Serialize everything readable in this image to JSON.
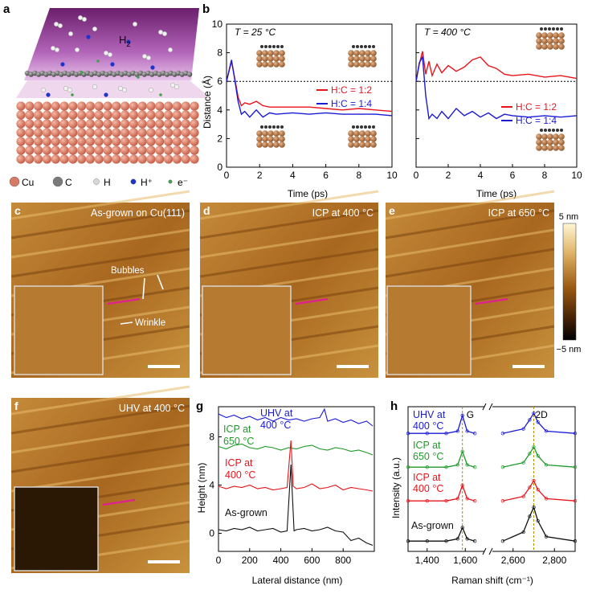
{
  "panel_labels": {
    "a": "a",
    "b": "b",
    "c": "c",
    "d": "d",
    "e": "e",
    "f": "f",
    "g": "g",
    "h": "h"
  },
  "panel_a": {
    "h2_label": "H",
    "h2_sub": "2",
    "legend": [
      {
        "symbol": "cu-atom",
        "label": "Cu",
        "color": "#d77a64"
      },
      {
        "symbol": "c-atom",
        "label": "C",
        "color": "#7a7a7a"
      },
      {
        "symbol": "h-atom",
        "label": "H",
        "color": "#d9d9d9"
      },
      {
        "symbol": "h-plus",
        "label": "H⁺",
        "color": "#1f35c9"
      },
      {
        "symbol": "electron",
        "label": "e⁻",
        "color": "#3fa34d"
      }
    ]
  },
  "panel_b": {
    "temps": [
      "T = 25 °C",
      "T = 400 °C"
    ],
    "legend": [
      "H:C = 1:2",
      "H:C = 1:4"
    ],
    "ylabel": "Distance (Å)",
    "xlabel": "Time (ps)",
    "colors": {
      "hc12": "#e8141b",
      "hc14": "#1a1ad6"
    }
  },
  "afm": {
    "c_title": "As-grown on Cu(111)",
    "d_title": "ICP at 400 °C",
    "e_title": "ICP at 650 °C",
    "f_title": "UHV at 400 °C",
    "bubbles": "Bubbles",
    "wrinkle": "Wrinkle",
    "scale_max": "5 nm",
    "scale_min": "−5 nm"
  },
  "panel_g": {
    "ylabel": "Height (nm)",
    "xlabel": "Lateral distance (nm)",
    "curves": [
      {
        "label_l1": "UHV at",
        "label_l2": "400 °C",
        "color": "#1a1ad6"
      },
      {
        "label_l1": "ICP at",
        "label_l2": "650 °C",
        "color": "#1f9a2a"
      },
      {
        "label_l1": "ICP at",
        "label_l2": "400 °C",
        "color": "#e8141b"
      },
      {
        "label_l1": "As-grown",
        "label_l2": "",
        "color": "#111111"
      }
    ]
  },
  "panel_h": {
    "ylabel": "Intensity (a.u.)",
    "xlabel": "Raman shift (cm⁻¹)",
    "peaks": [
      "G",
      "2D"
    ],
    "curves": [
      {
        "label_l1": "UHV at",
        "label_l2": "400 °C",
        "color": "#1a1ad6"
      },
      {
        "label_l1": "ICP at",
        "label_l2": "650 °C",
        "color": "#1f9a2a"
      },
      {
        "label_l1": "ICP at",
        "label_l2": "400 °C",
        "color": "#e8141b"
      },
      {
        "label_l1": "As-grown",
        "label_l2": "",
        "color": "#111111"
      }
    ]
  },
  "chart_data": [
    {
      "type": "line",
      "title": "T = 25 °C",
      "xlabel": "Time (ps)",
      "ylabel": "Distance (Å)",
      "xlim": [
        0,
        10
      ],
      "ylim": [
        0,
        10
      ],
      "x_ticks": [
        "0",
        "2",
        "4",
        "6",
        "8",
        "10"
      ],
      "y_ticks": [
        "0",
        "2",
        "4",
        "6",
        "8",
        "10"
      ],
      "reference_line_y": 6,
      "series": [
        {
          "name": "H:C = 1:2",
          "x": [
            0,
            0.3,
            0.5,
            0.7,
            0.9,
            1.1,
            1.4,
            1.8,
            2.2,
            2.6,
            3,
            4,
            5,
            6,
            7,
            8,
            9,
            10
          ],
          "y": [
            6,
            7.4,
            6.2,
            4.9,
            4.3,
            4.5,
            4.4,
            4.6,
            4.3,
            4.2,
            4.2,
            4.2,
            4.2,
            4.1,
            4.0,
            4.1,
            4.0,
            3.9
          ]
        },
        {
          "name": "H:C = 1:4",
          "x": [
            0,
            0.3,
            0.5,
            0.7,
            0.9,
            1.1,
            1.4,
            1.8,
            2.2,
            2.6,
            3,
            4,
            5,
            6,
            7,
            8,
            9,
            10
          ],
          "y": [
            6,
            7.5,
            6.1,
            4.6,
            3.7,
            3.9,
            3.5,
            4.0,
            3.5,
            3.8,
            3.7,
            3.8,
            3.7,
            3.8,
            3.7,
            3.7,
            3.7,
            3.6
          ]
        }
      ]
    },
    {
      "type": "line",
      "title": "T = 400 °C",
      "xlabel": "Time (ps)",
      "ylabel": "",
      "xlim": [
        0,
        10
      ],
      "ylim": [
        0,
        10
      ],
      "x_ticks": [
        "0",
        "2",
        "4",
        "6",
        "8",
        "10"
      ],
      "reference_line_y": 6,
      "series": [
        {
          "name": "H:C = 1:2",
          "x": [
            0,
            0.2,
            0.4,
            0.6,
            0.8,
            1,
            1.3,
            1.6,
            2,
            2.5,
            3,
            3.5,
            4,
            4.5,
            5,
            5.5,
            6,
            7,
            8,
            9,
            10
          ],
          "y": [
            6,
            7.2,
            8.1,
            6.5,
            7.4,
            6.4,
            7.2,
            6.6,
            7.1,
            6.7,
            7.0,
            7.5,
            7.7,
            7.1,
            6.9,
            6.5,
            6.4,
            6.5,
            6.3,
            6.4,
            6.2
          ]
        },
        {
          "name": "H:C = 1:4",
          "x": [
            0,
            0.2,
            0.4,
            0.6,
            0.8,
            1,
            1.3,
            1.6,
            2,
            2.5,
            3,
            3.5,
            4,
            4.5,
            5,
            5.5,
            6,
            7,
            8,
            9,
            10
          ],
          "y": [
            6,
            7.3,
            7.7,
            5.0,
            3.4,
            3.7,
            3.4,
            3.9,
            3.4,
            4.1,
            3.6,
            3.9,
            3.5,
            3.8,
            3.4,
            3.7,
            3.6,
            3.5,
            3.6,
            3.5,
            3.6
          ]
        }
      ]
    },
    {
      "type": "line",
      "title": "",
      "xlabel": "Lateral distance (nm)",
      "ylabel": "Height (nm)",
      "xlim": [
        0,
        1000
      ],
      "ylim": [
        -1.5,
        10.5
      ],
      "x_ticks": [
        "0",
        "200",
        "400",
        "600",
        "800"
      ],
      "y_ticks": [
        "0",
        "4",
        "8"
      ],
      "series": [
        {
          "name": "UHV at 400 °C",
          "x": [
            0,
            50,
            100,
            150,
            200,
            250,
            300,
            350,
            400,
            450,
            500,
            550,
            600,
            650,
            680,
            700,
            750,
            800,
            850,
            900,
            950,
            990
          ],
          "y": [
            9.9,
            9.6,
            9.8,
            9.5,
            9.7,
            9.4,
            9.6,
            9.3,
            9.6,
            9.4,
            9.5,
            9.3,
            9.5,
            9.6,
            10.3,
            9.3,
            9.5,
            9.2,
            9.4,
            9.1,
            9.3,
            8.9
          ]
        },
        {
          "name": "ICP at 650 °C",
          "x": [
            0,
            50,
            100,
            150,
            200,
            250,
            300,
            350,
            400,
            450,
            500,
            550,
            600,
            650,
            700,
            750,
            800,
            850,
            900,
            950,
            990
          ],
          "y": [
            7.2,
            7.0,
            7.3,
            7.4,
            7.1,
            7.0,
            7.2,
            7.1,
            6.9,
            7.1,
            7.0,
            7.2,
            7.3,
            7.0,
            6.9,
            7.1,
            7.0,
            6.8,
            6.9,
            6.7,
            6.5
          ]
        },
        {
          "name": "ICP at 400 °C",
          "x": [
            0,
            50,
            100,
            150,
            200,
            250,
            300,
            350,
            400,
            440,
            465,
            480,
            500,
            550,
            600,
            650,
            700,
            750,
            800,
            850,
            900,
            950,
            990
          ],
          "y": [
            3.9,
            3.7,
            3.9,
            3.8,
            4.0,
            3.7,
            3.8,
            3.6,
            3.7,
            3.8,
            7.7,
            3.9,
            3.7,
            3.8,
            4.1,
            3.7,
            3.8,
            4.0,
            3.6,
            3.8,
            3.7,
            3.6,
            3.5
          ]
        },
        {
          "name": "As-grown",
          "x": [
            0,
            50,
            100,
            150,
            200,
            250,
            300,
            350,
            400,
            440,
            465,
            485,
            500,
            550,
            600,
            650,
            700,
            750,
            800,
            850,
            900,
            950,
            990
          ],
          "y": [
            0.3,
            0.2,
            0.4,
            0.3,
            0.5,
            0.2,
            0.3,
            0.4,
            0.1,
            0.2,
            5.7,
            0.2,
            0.3,
            0.4,
            0.2,
            0.3,
            0.5,
            0.2,
            0.1,
            -0.6,
            -0.4,
            -0.8,
            -1.0
          ]
        }
      ]
    },
    {
      "type": "scatter",
      "title": "",
      "xlabel": "Raman shift (cm⁻¹)",
      "ylabel": "Intensity (a.u.)",
      "x_ticks": [
        "1,400",
        "1,600",
        "2,600",
        "2,800"
      ],
      "axis_break": true,
      "peak_positions": {
        "G": 1585,
        "2D": 2700
      },
      "series": [
        {
          "name": "UHV at 400 °C",
          "x": [
            1300,
            1400,
            1500,
            1560,
            1585,
            1610,
            1650,
            2550,
            2650,
            2680,
            2700,
            2720,
            2760,
            2900
          ],
          "y": [
            0.1,
            0.1,
            0.1,
            0.2,
            0.9,
            0.2,
            0.1,
            0.1,
            0.3,
            0.7,
            1.0,
            0.6,
            0.2,
            0.1
          ]
        },
        {
          "name": "ICP at 650 °C",
          "x": [
            1300,
            1400,
            1500,
            1560,
            1585,
            1610,
            1650,
            2550,
            2650,
            2680,
            2700,
            2720,
            2760,
            2900
          ],
          "y": [
            0.1,
            0.1,
            0.1,
            0.2,
            0.8,
            0.2,
            0.1,
            0.1,
            0.3,
            0.7,
            1.0,
            0.6,
            0.2,
            0.1
          ]
        },
        {
          "name": "ICP at 400 °C",
          "x": [
            1300,
            1400,
            1500,
            1560,
            1585,
            1610,
            1650,
            2550,
            2650,
            2680,
            2700,
            2720,
            2760,
            2900
          ],
          "y": [
            0.1,
            0.1,
            0.1,
            0.2,
            0.8,
            0.2,
            0.1,
            0.1,
            0.3,
            0.7,
            1.0,
            0.6,
            0.2,
            0.1
          ]
        },
        {
          "name": "As-grown",
          "x": [
            1300,
            1400,
            1500,
            1560,
            1585,
            1610,
            1650,
            2550,
            2650,
            2680,
            2700,
            2720,
            2760,
            2900
          ],
          "y": [
            0.1,
            0.1,
            0.1,
            0.2,
            0.7,
            0.2,
            0.1,
            0.1,
            0.5,
            1.2,
            1.6,
            1.0,
            0.3,
            0.1
          ]
        }
      ]
    }
  ]
}
